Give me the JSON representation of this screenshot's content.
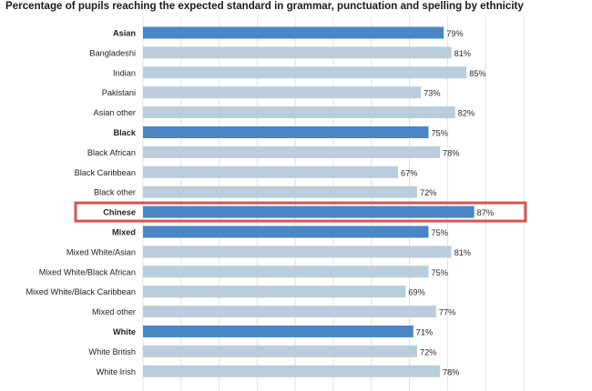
{
  "chart_data": {
    "type": "bar",
    "orientation": "horizontal",
    "title": "Percentage of pupils reaching the expected standard in grammar, punctuation and spelling by ethnicity",
    "xlabel": "",
    "ylabel": "",
    "xlim": [
      0,
      100
    ],
    "grid": true,
    "highlight_box_on": "Chinese",
    "colors": {
      "group": "#4a86c6",
      "subgroup": "#b9cddd",
      "highlight_box": "#d9534f",
      "value_label": "#2a2a2a",
      "grid": "#e3e3e3"
    },
    "categories": [
      {
        "label": "Asian",
        "value": 79,
        "value_label": "79%",
        "group": true
      },
      {
        "label": "Bangladeshi",
        "value": 81,
        "value_label": "81%",
        "group": false
      },
      {
        "label": "Indian",
        "value": 85,
        "value_label": "85%",
        "group": false
      },
      {
        "label": "Pakistani",
        "value": 73,
        "value_label": "73%",
        "group": false
      },
      {
        "label": "Asian other",
        "value": 82,
        "value_label": "82%",
        "group": false
      },
      {
        "label": "Black",
        "value": 75,
        "value_label": "75%",
        "group": true
      },
      {
        "label": "Black African",
        "value": 78,
        "value_label": "78%",
        "group": false
      },
      {
        "label": "Black Caribbean",
        "value": 67,
        "value_label": "67%",
        "group": false
      },
      {
        "label": "Black other",
        "value": 72,
        "value_label": "72%",
        "group": false
      },
      {
        "label": "Chinese",
        "value": 87,
        "value_label": "87%",
        "group": true
      },
      {
        "label": "Mixed",
        "value": 75,
        "value_label": "75%",
        "group": true
      },
      {
        "label": "Mixed White/Asian",
        "value": 81,
        "value_label": "81%",
        "group": false
      },
      {
        "label": "Mixed White/Black African",
        "value": 75,
        "value_label": "75%",
        "group": false
      },
      {
        "label": "Mixed White/Black Caribbean",
        "value": 69,
        "value_label": "69%",
        "group": false
      },
      {
        "label": "Mixed other",
        "value": 77,
        "value_label": "77%",
        "group": false
      },
      {
        "label": "White",
        "value": 71,
        "value_label": "71%",
        "group": true
      },
      {
        "label": "White British",
        "value": 72,
        "value_label": "72%",
        "group": false
      },
      {
        "label": "White Irish",
        "value": 78,
        "value_label": "78%",
        "group": false
      }
    ]
  }
}
